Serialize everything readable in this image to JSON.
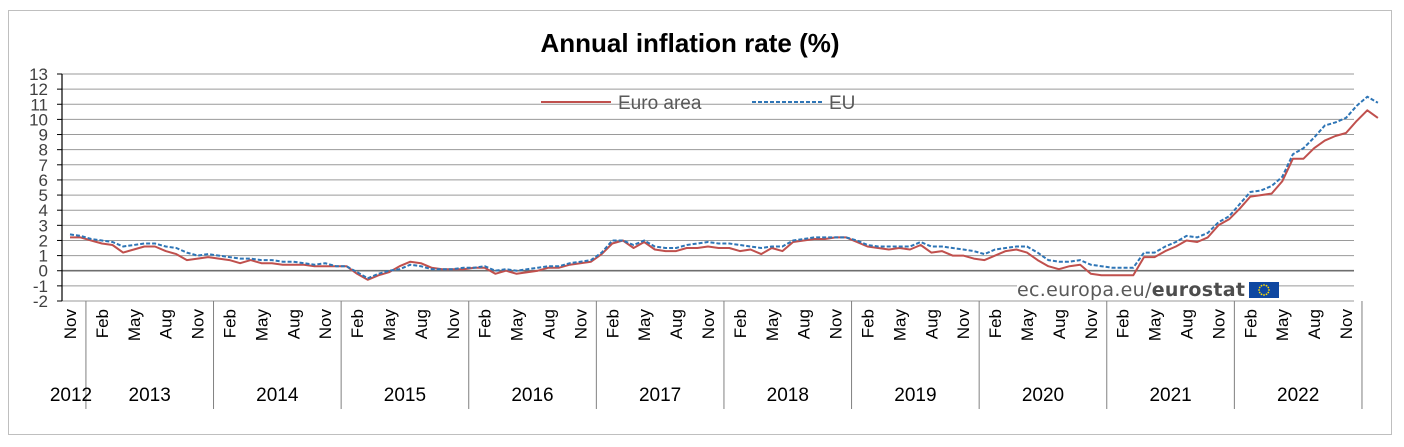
{
  "chart_data": {
    "type": "line",
    "title": "Annual  inflation rate (%)",
    "xlabel": "",
    "ylabel": "",
    "ylim": [
      -2,
      13
    ],
    "yticks": [
      "-2",
      "-1",
      "0",
      "1",
      "2",
      "3",
      "4",
      "5",
      "6",
      "7",
      "8",
      "9",
      "10",
      "11",
      "12",
      "13"
    ],
    "grid": true,
    "legend_position": "top-center",
    "x_month_labels": [
      "Nov",
      "Feb",
      "May",
      "Aug",
      "Nov",
      "Feb",
      "May",
      "Aug",
      "Nov",
      "Feb",
      "May",
      "Aug",
      "Nov",
      "Feb",
      "May",
      "Aug",
      "Nov",
      "Feb",
      "May",
      "Aug",
      "Nov",
      "Feb",
      "May",
      "Aug",
      "Nov",
      "Feb",
      "May",
      "Aug",
      "Nov",
      "Feb",
      "May",
      "Aug",
      "Nov",
      "Feb",
      "May",
      "Aug",
      "Nov",
      "Feb",
      "May",
      "Aug",
      "Nov"
    ],
    "x_year_labels": [
      "2012",
      "2013",
      "2014",
      "2015",
      "2016",
      "2017",
      "2018",
      "2019",
      "2020",
      "2021",
      "2022"
    ],
    "x_start": "2012-11",
    "series": [
      {
        "name": "Euro area",
        "color": "#c0504d",
        "dash": "solid",
        "values": [
          2.2,
          2.2,
          2.0,
          1.8,
          1.7,
          1.2,
          1.4,
          1.6,
          1.6,
          1.3,
          1.1,
          0.7,
          0.8,
          0.9,
          0.8,
          0.7,
          0.5,
          0.7,
          0.5,
          0.5,
          0.4,
          0.4,
          0.4,
          0.3,
          0.3,
          0.3,
          0.3,
          -0.2,
          -0.6,
          -0.3,
          -0.1,
          0.3,
          0.6,
          0.5,
          0.2,
          0.1,
          0.1,
          0.1,
          0.2,
          0.2,
          -0.2,
          0.0,
          -0.2,
          -0.1,
          0.0,
          0.2,
          0.2,
          0.4,
          0.5,
          0.6,
          1.1,
          1.8,
          2.0,
          1.5,
          1.9,
          1.4,
          1.3,
          1.3,
          1.5,
          1.5,
          1.6,
          1.5,
          1.5,
          1.3,
          1.4,
          1.1,
          1.5,
          1.3,
          1.9,
          2.0,
          2.1,
          2.1,
          2.2,
          2.2,
          1.9,
          1.6,
          1.5,
          1.4,
          1.5,
          1.4,
          1.7,
          1.2,
          1.3,
          1.0,
          1.0,
          0.8,
          0.7,
          1.0,
          1.3,
          1.4,
          1.2,
          0.7,
          0.3,
          0.1,
          0.3,
          0.4,
          -0.2,
          -0.3,
          -0.3,
          -0.3,
          -0.3,
          0.9,
          0.9,
          1.3,
          1.6,
          2.0,
          1.9,
          2.2,
          3.0,
          3.4,
          4.1,
          4.9,
          5.0,
          5.1,
          5.9,
          7.4,
          7.4,
          8.1,
          8.6,
          8.9,
          9.1,
          9.9,
          10.6,
          10.1
        ]
      },
      {
        "name": "EU",
        "color": "#2e75b6",
        "dash": "dashed",
        "values": [
          2.4,
          2.3,
          2.1,
          2.0,
          1.9,
          1.6,
          1.7,
          1.8,
          1.8,
          1.6,
          1.5,
          1.2,
          1.0,
          1.1,
          1.0,
          0.9,
          0.8,
          0.8,
          0.7,
          0.7,
          0.6,
          0.6,
          0.5,
          0.4,
          0.5,
          0.3,
          0.3,
          -0.1,
          -0.5,
          -0.2,
          0.0,
          0.1,
          0.4,
          0.3,
          0.1,
          0.1,
          0.1,
          0.2,
          0.2,
          0.3,
          0.0,
          0.1,
          0.0,
          0.1,
          0.2,
          0.3,
          0.3,
          0.5,
          0.6,
          0.7,
          1.2,
          2.0,
          2.0,
          1.7,
          2.0,
          1.6,
          1.5,
          1.5,
          1.7,
          1.8,
          1.9,
          1.8,
          1.8,
          1.7,
          1.6,
          1.5,
          1.6,
          1.6,
          2.0,
          2.1,
          2.2,
          2.2,
          2.2,
          2.2,
          2.0,
          1.7,
          1.6,
          1.6,
          1.6,
          1.6,
          1.9,
          1.6,
          1.6,
          1.5,
          1.4,
          1.3,
          1.1,
          1.4,
          1.5,
          1.6,
          1.6,
          1.2,
          0.7,
          0.6,
          0.6,
          0.7,
          0.4,
          0.3,
          0.2,
          0.2,
          0.2,
          1.2,
          1.2,
          1.6,
          1.9,
          2.3,
          2.2,
          2.5,
          3.2,
          3.6,
          4.4,
          5.2,
          5.3,
          5.6,
          6.2,
          7.7,
          8.1,
          8.8,
          9.6,
          9.8,
          10.1,
          10.9,
          11.5,
          11.1
        ]
      }
    ]
  },
  "watermark": {
    "prefix": "ec.europa.eu/",
    "brand": "eurostat",
    "flag_icon": "eu-flag-icon"
  }
}
